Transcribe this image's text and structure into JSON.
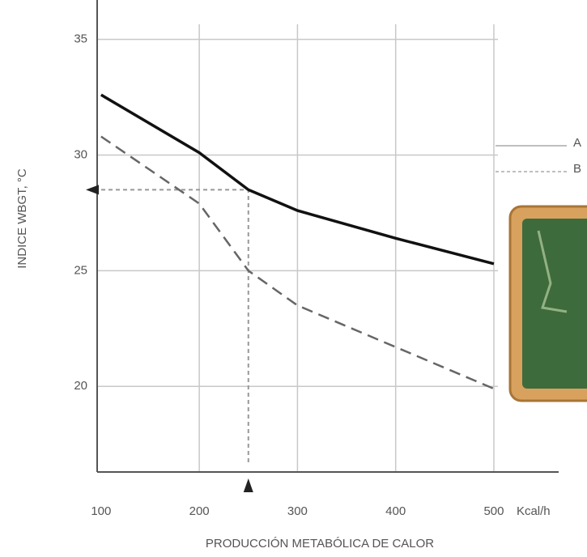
{
  "chart_data": {
    "type": "line",
    "x_label": "PRODUCCIÓN METABÓLICA DE CALOR",
    "x_unit": "Kcal/h",
    "y_label": "INDICE WBGT, °C",
    "x": [
      100,
      200,
      250,
      300,
      400,
      500
    ],
    "series": [
      {
        "name": "A",
        "color": "#111111",
        "dashed": false,
        "values": [
          32.6,
          30.1,
          28.5,
          27.6,
          26.4,
          25.3
        ]
      },
      {
        "name": "B",
        "color": "#666666",
        "dashed": true,
        "values": [
          30.8,
          27.9,
          25,
          23.5,
          21.7,
          19.9
        ]
      }
    ],
    "xlim": [
      96,
      566
    ],
    "xticks": [
      100,
      200,
      300,
      400,
      500
    ],
    "ylim": [
      16.3,
      36.7
    ],
    "yticks": [
      20,
      25,
      30,
      35
    ],
    "grid": true,
    "legend": "right"
  }
}
